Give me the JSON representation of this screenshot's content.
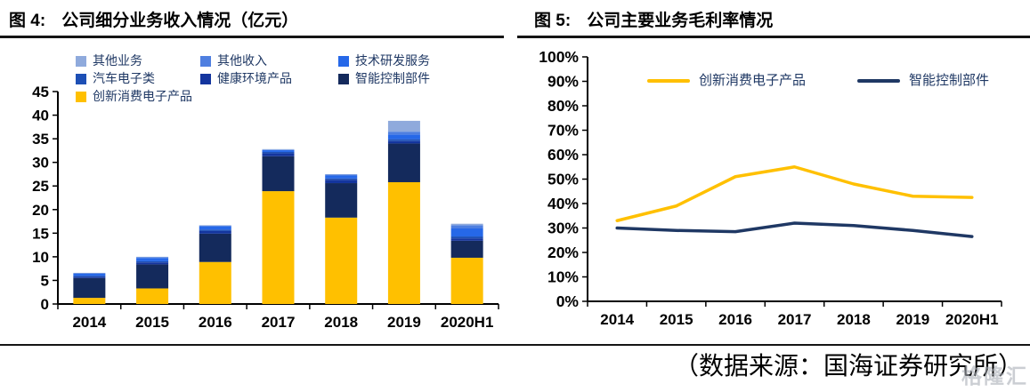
{
  "page": {
    "source_note": "（数据来源：国海证券研究所）",
    "watermark": "格隆汇"
  },
  "colors": {
    "axis": "#000000",
    "rule": "#141414",
    "legend_text": "#1F3864"
  },
  "chart_data": [
    {
      "type": "bar",
      "stacked": true,
      "fig_label": "图 4:",
      "fig_title": "公司细分业务收入情况（亿元）",
      "title": "公司细分业务收入情况（亿元）",
      "xlabel": "",
      "ylabel": "",
      "ylim": [
        0,
        45
      ],
      "ytick_step": 5,
      "yticks": [
        0,
        5,
        10,
        15,
        20,
        25,
        30,
        35,
        40,
        45
      ],
      "grid": false,
      "legend_position": "top",
      "categories": [
        "2014",
        "2015",
        "2016",
        "2017",
        "2018",
        "2019",
        "2020H1"
      ],
      "legend": [
        {
          "label": "其他业务",
          "color": "#8FAADC"
        },
        {
          "label": "其他收入",
          "color": "#4F7FE0"
        },
        {
          "label": "技术研发服务",
          "color": "#2668E8"
        },
        {
          "label": "汽车电子类",
          "color": "#1D4FB5"
        },
        {
          "label": "健康环境产品",
          "color": "#14359E"
        },
        {
          "label": "智能控制部件",
          "color": "#142A5C"
        },
        {
          "label": "创新消费电子产品",
          "color": "#FFC000"
        }
      ],
      "series": [
        {
          "name": "创新消费电子产品",
          "color": "#FFC000",
          "values": [
            1.3,
            3.3,
            8.9,
            23.9,
            18.3,
            25.8,
            9.8
          ]
        },
        {
          "name": "智能控制部件",
          "color": "#142A5C",
          "values": [
            4.2,
            5.1,
            6.0,
            7.4,
            7.3,
            8.2,
            3.6
          ]
        },
        {
          "name": "健康环境产品",
          "color": "#14359E",
          "values": [
            0.25,
            0.4,
            0.55,
            0.6,
            0.7,
            0.5,
            0.5
          ]
        },
        {
          "name": "汽车电子类",
          "color": "#1D4FB5",
          "values": [
            0.2,
            0.25,
            0.3,
            0.3,
            0.3,
            0.4,
            0.4
          ]
        },
        {
          "name": "技术研发服务",
          "color": "#2668E8",
          "values": [
            0.45,
            0.7,
            0.7,
            0.4,
            0.6,
            1.0,
            1.7
          ]
        },
        {
          "name": "其他收入",
          "color": "#4F7FE0",
          "values": [
            0.1,
            0.15,
            0.15,
            0.1,
            0.2,
            0.6,
            0.7
          ]
        },
        {
          "name": "其他业务",
          "color": "#8FAADC",
          "values": [
            0.1,
            0.1,
            0.1,
            0.1,
            0.1,
            2.3,
            0.3
          ]
        }
      ],
      "totals": [
        6.6,
        10.0,
        16.7,
        32.8,
        27.5,
        38.8,
        17.0
      ]
    },
    {
      "type": "line",
      "fig_label": "图 5:",
      "fig_title": "公司主要业务毛利率情况",
      "title": "公司主要业务毛利率情况",
      "xlabel": "",
      "ylabel": "",
      "ylim": [
        0,
        100
      ],
      "ytick_step": 10,
      "yticks_percent": [
        "0%",
        "10%",
        "20%",
        "30%",
        "40%",
        "50%",
        "60%",
        "70%",
        "80%",
        "90%",
        "100%"
      ],
      "grid": false,
      "legend_position": "top-inside",
      "categories": [
        "2014",
        "2015",
        "2016",
        "2017",
        "2018",
        "2019",
        "2020H1"
      ],
      "series": [
        {
          "name": "创新消费电子产品",
          "color": "#FFC000",
          "values": [
            33,
            39,
            51,
            55,
            48,
            43,
            42.5
          ]
        },
        {
          "name": "智能控制部件",
          "color": "#1F3864",
          "values": [
            30,
            29,
            28.5,
            32,
            31,
            29,
            26.5
          ]
        }
      ]
    }
  ]
}
